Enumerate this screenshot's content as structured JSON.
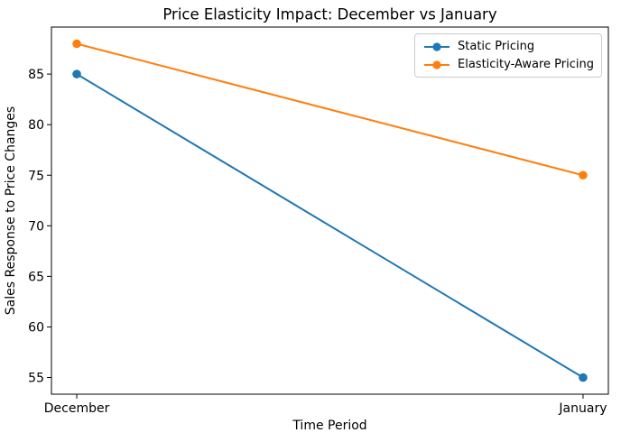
{
  "figure": {
    "background": "#ffffff"
  },
  "chart_data": {
    "type": "line",
    "title": "Price Elasticity Impact: December vs January",
    "xlabel": "Time Period",
    "ylabel": "Sales Response to Price Changes",
    "categories": [
      "December",
      "January"
    ],
    "series": [
      {
        "name": "Static Pricing",
        "color": "#1f77b4",
        "values": [
          85,
          55
        ]
      },
      {
        "name": "Elasticity-Aware Pricing",
        "color": "#ff7f0e",
        "values": [
          88,
          75
        ]
      }
    ],
    "yticks": [
      55,
      60,
      65,
      70,
      75,
      80,
      85
    ],
    "ylim": [
      53.35,
      89.65
    ],
    "xlim_margin": 0.05,
    "grid": false,
    "marker": "circle",
    "spine_color": "#000000",
    "legend": {
      "position": "upper right",
      "border_color": "#cccccc"
    }
  }
}
